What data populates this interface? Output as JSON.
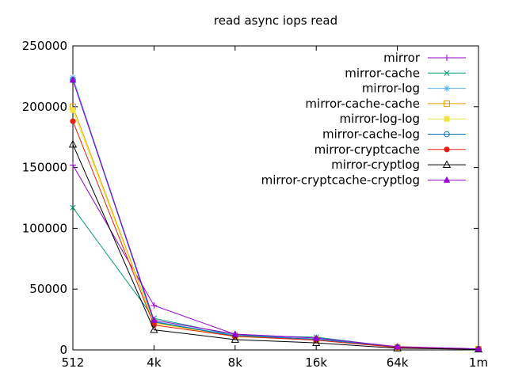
{
  "chart_data": {
    "type": "line",
    "title": "read async iops read",
    "xlabel": "",
    "ylabel": "",
    "x_labels": [
      "512",
      "4k",
      "8k",
      "16k",
      "64k",
      "1m"
    ],
    "y_ticks": [
      0,
      50000,
      100000,
      150000,
      200000,
      250000
    ],
    "ylim": [
      0,
      250000
    ],
    "grid": false,
    "legend_position": "top-right-inside",
    "background_color": "#ffffff",
    "text_color": "#000000",
    "series": [
      {
        "name": "mirror",
        "color": "#9400d3",
        "marker": "plus",
        "values": [
          152000,
          36500,
          12800,
          8800,
          2500,
          800
        ]
      },
      {
        "name": "mirror-cache",
        "color": "#009e73",
        "marker": "cross",
        "values": [
          117000,
          26000,
          12000,
          10500,
          2300,
          700
        ]
      },
      {
        "name": "mirror-log",
        "color": "#56b4e9",
        "marker": "asterisk",
        "values": [
          224000,
          23500,
          11800,
          9000,
          2400,
          750
        ]
      },
      {
        "name": "mirror-cache-cache",
        "color": "#e69f00",
        "marker": "square-open",
        "values": [
          200000,
          22500,
          11000,
          8500,
          2200,
          700
        ]
      },
      {
        "name": "mirror-log-log",
        "color": "#f0e442",
        "marker": "square-filled",
        "values": [
          197000,
          22000,
          10800,
          8300,
          2100,
          700
        ]
      },
      {
        "name": "mirror-cache-log",
        "color": "#0072b2",
        "marker": "circle-open",
        "values": [
          222000,
          23000,
          11500,
          8800,
          2300,
          700
        ]
      },
      {
        "name": "mirror-cryptcache",
        "color": "#e51e10",
        "marker": "circle-filled",
        "values": [
          188000,
          20500,
          11200,
          8000,
          2000,
          650
        ]
      },
      {
        "name": "mirror-cryptlog",
        "color": "#000000",
        "marker": "triangle-open",
        "values": [
          169000,
          16500,
          8500,
          5800,
          1400,
          500
        ]
      },
      {
        "name": "mirror-cryptcache-cryptlog",
        "color": "#9400d3",
        "marker": "triangle-filled",
        "values": [
          222000,
          24500,
          13000,
          9800,
          2700,
          900
        ]
      }
    ]
  }
}
